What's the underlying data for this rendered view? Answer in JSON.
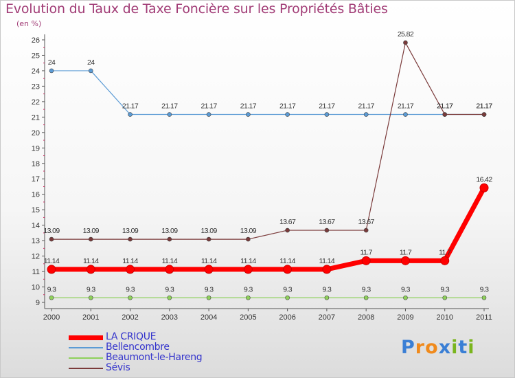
{
  "title": "Evolution du Taux de Taxe Foncière sur les Propriétés Bâties",
  "unit_label": "(en %)",
  "logo": {
    "letters": [
      "P",
      "r",
      "o",
      "x",
      "i",
      "t",
      "i"
    ],
    "colors": [
      "#3a7fd5",
      "#f08a1c",
      "#f08a1c",
      "#3a7fd5",
      "#7ab51d",
      "#3a7fd5",
      "#7ab51d"
    ]
  },
  "chart_data": {
    "type": "line",
    "x": [
      "2000",
      "2001",
      "2002",
      "2003",
      "2004",
      "2005",
      "2006",
      "2007",
      "2008",
      "2009",
      "2010",
      "2011"
    ],
    "ylim": [
      9,
      26
    ],
    "yticks": [
      9,
      10,
      11,
      12,
      13,
      14,
      15,
      16,
      17,
      18,
      19,
      20,
      21,
      22,
      23,
      24,
      25,
      26
    ],
    "grid": false,
    "legend_position": "bottom-left",
    "series": [
      {
        "name": "LA CRIQUE",
        "color": "#ff0000",
        "values": [
          11.14,
          11.14,
          11.14,
          11.14,
          11.14,
          11.14,
          11.14,
          11.14,
          11.7,
          11.7,
          11.7,
          16.42
        ],
        "labels": [
          "11.14",
          "11.14",
          "11.14",
          "11.14",
          "11.14",
          "11.14",
          "11.14",
          "11.14",
          "11.7",
          "11.7",
          "11.7",
          "16.42"
        ]
      },
      {
        "name": "Bellencombre",
        "color": "#5b9bd5",
        "values": [
          24,
          24,
          21.17,
          21.17,
          21.17,
          21.17,
          21.17,
          21.17,
          21.17,
          21.17,
          21.17,
          21.17
        ],
        "labels": [
          "24",
          "24",
          "21.17",
          "21.17",
          "21.17",
          "21.17",
          "21.17",
          "21.17",
          "21.17",
          "21.17",
          "21.17",
          "21.17"
        ]
      },
      {
        "name": "Beaumont-le-Hareng",
        "color": "#8ed05a",
        "values": [
          9.3,
          9.3,
          9.3,
          9.3,
          9.3,
          9.3,
          9.3,
          9.3,
          9.3,
          9.3,
          9.3,
          9.3
        ],
        "labels": [
          "9.3",
          "9.3",
          "9.3",
          "9.3",
          "9.3",
          "9.3",
          "9.3",
          "9.3",
          "9.3",
          "9.3",
          "9.3",
          "9.3"
        ]
      },
      {
        "name": "Sévis",
        "color": "#7a3a3a",
        "values": [
          13.09,
          13.09,
          13.09,
          13.09,
          13.09,
          13.09,
          13.67,
          13.67,
          13.67,
          25.82,
          21.17,
          21.17
        ],
        "labels": [
          "13.09",
          "13.09",
          "13.09",
          "13.09",
          "13.09",
          "13.09",
          "13.67",
          "13.67",
          "13.67",
          "25.82",
          "21.17",
          "21.17"
        ]
      }
    ]
  }
}
